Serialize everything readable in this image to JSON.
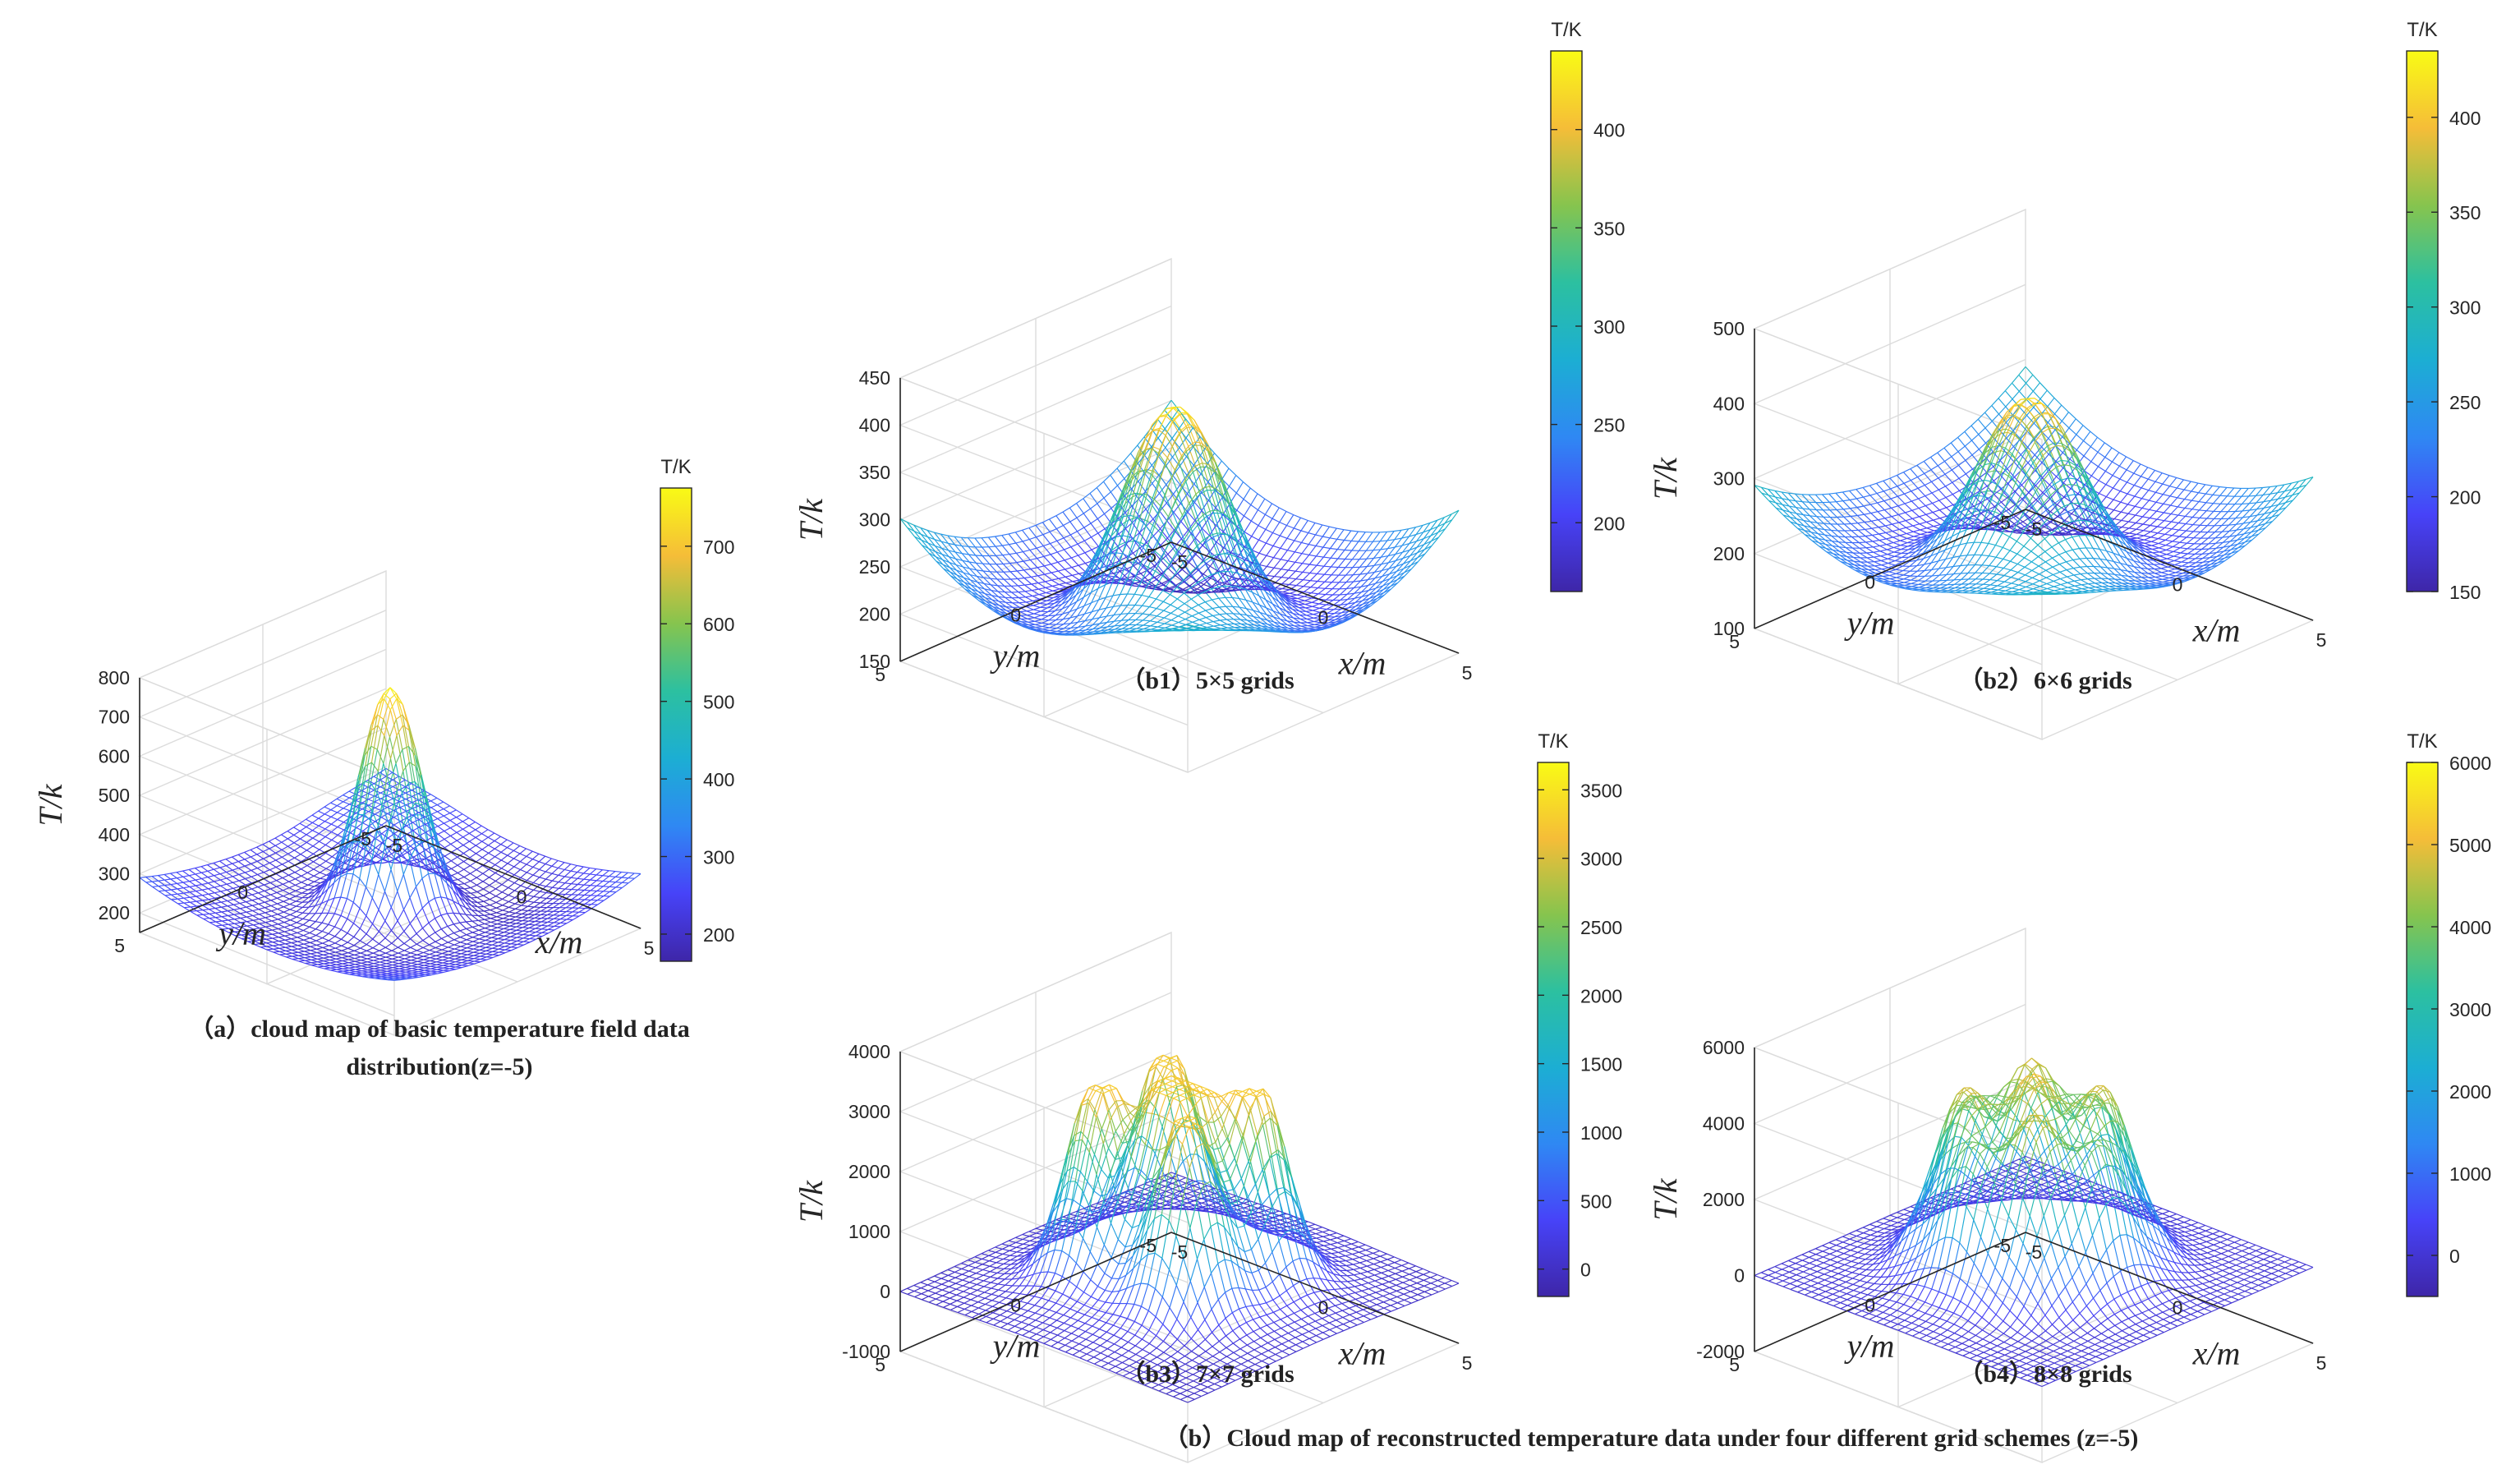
{
  "colors": {
    "colormap": [
      "#3e26a8",
      "#4743f8",
      "#2f88f3",
      "#1caed3",
      "#2cc0a0",
      "#86c44e",
      "#f5bd38",
      "#f9fb15"
    ],
    "axis": "#262626",
    "grid": "#dcdcdc"
  },
  "main_caption": "（b）Cloud map of reconstructed temperature data under four different grid schemes (z=-5)",
  "chart_data": [
    {
      "id": "a",
      "type": "surface-mesh",
      "caption": [
        "（a）cloud map of basic temperature field data",
        "distribution(z=-5)"
      ],
      "xlabel": "x/m",
      "ylabel": "y/m",
      "zlabel": "T/k",
      "x_ticks": [
        "-5",
        "0",
        "5"
      ],
      "y_ticks": [
        "-5",
        "0",
        "5"
      ],
      "z_ticks": [
        "200",
        "300",
        "400",
        "500",
        "600",
        "700",
        "800"
      ],
      "zlim": [
        150,
        800
      ],
      "colorbar": {
        "title": "T/K",
        "range": [
          165,
          775
        ],
        "ticks": [
          "200",
          "300",
          "400",
          "500",
          "600",
          "700"
        ]
      },
      "surface": {
        "kind": "single-peak",
        "base": 185,
        "peak": 770,
        "corner": 260
      }
    },
    {
      "id": "b1",
      "type": "surface-mesh",
      "caption": [
        "（b1）5×5 grids"
      ],
      "xlabel": "x/m",
      "ylabel": "y/m",
      "zlabel": "T/k",
      "x_ticks": [
        "-5",
        "0",
        "5"
      ],
      "y_ticks": [
        "-5",
        "0",
        "5"
      ],
      "z_ticks": [
        "150",
        "200",
        "250",
        "300",
        "350",
        "400",
        "450"
      ],
      "zlim": [
        150,
        450
      ],
      "colorbar": {
        "title": "T/K",
        "range": [
          165,
          440
        ],
        "ticks": [
          "200",
          "250",
          "300",
          "350",
          "400"
        ]
      },
      "surface": {
        "kind": "broad-peak",
        "base": 170,
        "peak": 430,
        "corner": 300
      }
    },
    {
      "id": "b2",
      "type": "surface-mesh",
      "caption": [
        "（b2）6×6 grids"
      ],
      "xlabel": "x/m",
      "ylabel": "y/m",
      "zlabel": "T/k",
      "x_ticks": [
        "-5",
        "0",
        "5"
      ],
      "y_ticks": [
        "-5",
        "0",
        "5"
      ],
      "z_ticks": [
        "100",
        "200",
        "300",
        "400",
        "500"
      ],
      "zlim": [
        100,
        500
      ],
      "colorbar": {
        "title": "T/K",
        "range": [
          150,
          435
        ],
        "ticks": [
          "150",
          "200",
          "250",
          "300",
          "350",
          "400"
        ]
      },
      "surface": {
        "kind": "broad-peak",
        "base": 160,
        "peak": 420,
        "corner": 245
      }
    },
    {
      "id": "b3",
      "type": "surface-mesh",
      "caption": [
        "（b3）7×7 grids"
      ],
      "xlabel": "x/m",
      "ylabel": "y/m",
      "zlabel": "T/k",
      "x_ticks": [
        "-5",
        "0",
        "5"
      ],
      "y_ticks": [
        "-5",
        "0",
        "5"
      ],
      "z_ticks": [
        "-1000",
        "0",
        "1000",
        "2000",
        "3000",
        "4000"
      ],
      "zlim": [
        -1000,
        4000
      ],
      "colorbar": {
        "title": "T/K",
        "range": [
          -200,
          3700
        ],
        "ticks": [
          "0",
          "500",
          "1000",
          "1500",
          "2000",
          "2500",
          "3000",
          "3500"
        ]
      },
      "surface": {
        "kind": "multi-peak",
        "base": 0,
        "peak": 3300,
        "corner": 0
      }
    },
    {
      "id": "b4",
      "type": "surface-mesh",
      "caption": [
        "（b4）8×8 grids"
      ],
      "xlabel": "x/m",
      "ylabel": "y/m",
      "zlabel": "T/k",
      "x_ticks": [
        "-5",
        "0",
        "5"
      ],
      "y_ticks": [
        "-5",
        "0",
        "5"
      ],
      "z_ticks": [
        "-2000",
        "0",
        "2000",
        "4000",
        "6000"
      ],
      "zlim": [
        -2000,
        6000
      ],
      "colorbar": {
        "title": "T/K",
        "range": [
          -500,
          6000
        ],
        "ticks": [
          "0",
          "1000",
          "2000",
          "3000",
          "4000",
          "5000",
          "6000"
        ]
      },
      "surface": {
        "kind": "plateau",
        "base": 0,
        "peak": 5200,
        "corner": 0
      }
    }
  ]
}
